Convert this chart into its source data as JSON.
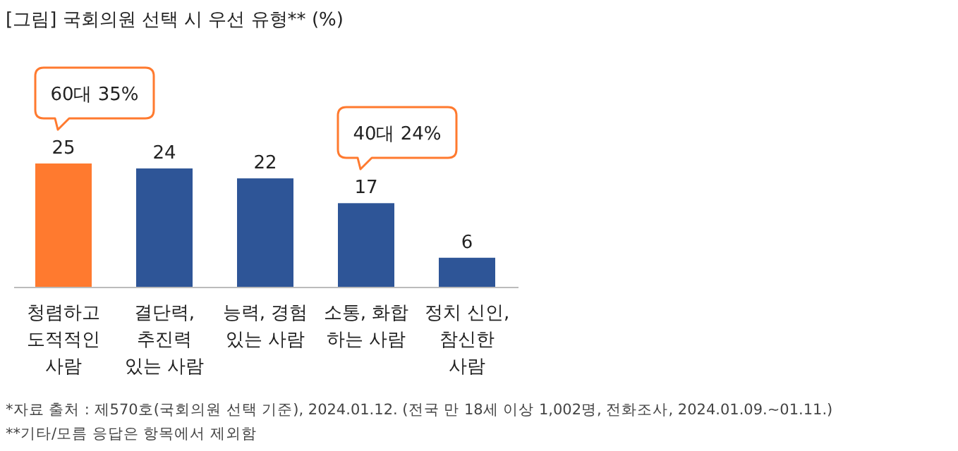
{
  "chart_data": {
    "type": "bar",
    "title": "[그림] 국회의원 선택 시 우선 유형** (%)",
    "categories": [
      "청렴하고\n도적적인\n사람",
      "결단력,\n추진력\n있는 사람",
      "능력, 경험\n있는 사람",
      "소통, 화합\n하는 사람",
      "정치 신인,\n참신한\n사람"
    ],
    "values": [
      25,
      24,
      22,
      17,
      6
    ],
    "colors": [
      "#ff7a2f",
      "#2e5597",
      "#2e5597",
      "#2e5597",
      "#2e5597"
    ],
    "data_labels": true,
    "annotations": [
      "60대 35%",
      "40대 24%",
      "*자료 출처 : 제570호(국회의원 선택 기준), 2024.01.12. (전국 만 18세 이상 1,002명, 전화조사, 2024.01.09.~01.11.)",
      "**기타/모름 응답은 항목에서 제외함"
    ]
  }
}
